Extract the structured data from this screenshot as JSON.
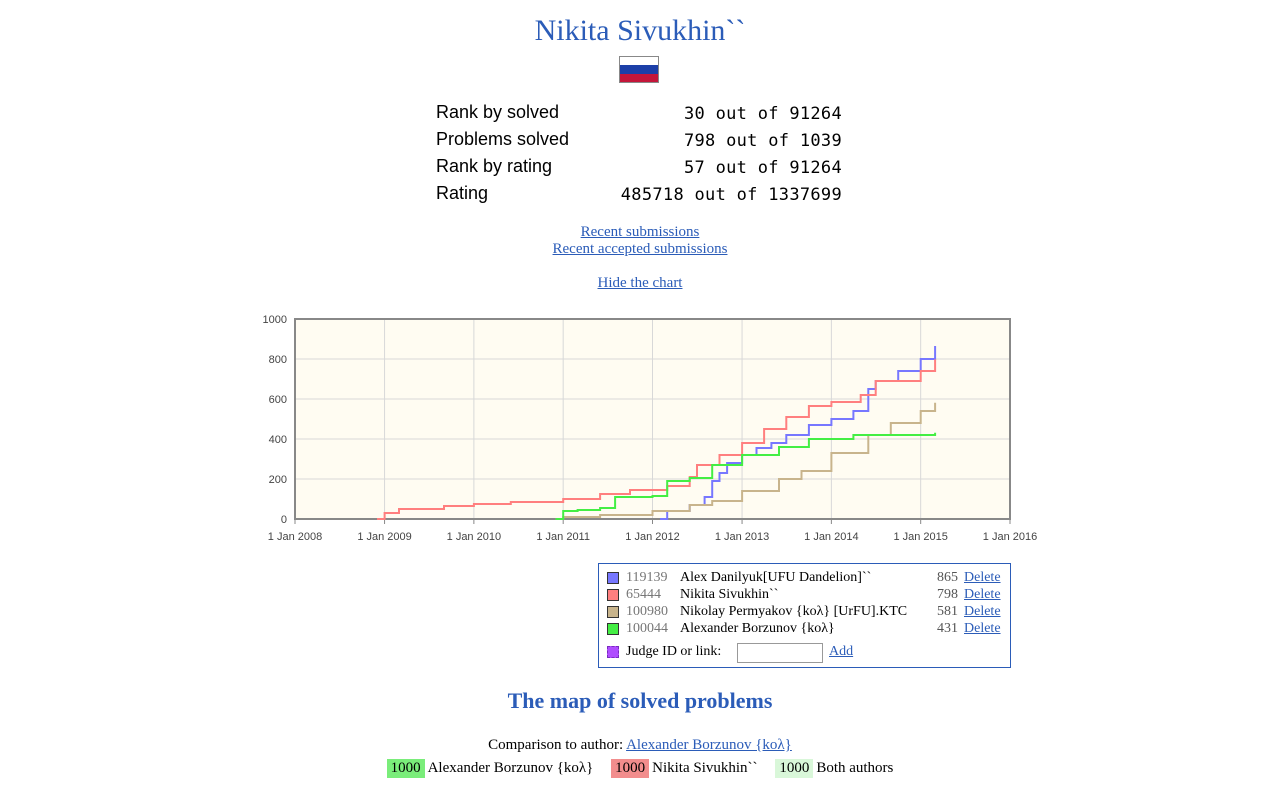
{
  "profile": {
    "name": "Nikita Sivukhin``",
    "flag_colors": [
      "#ffffff",
      "#1c3fa8",
      "#c4163a"
    ]
  },
  "stats": [
    {
      "label": "Rank by solved",
      "value": "30 out of 91264"
    },
    {
      "label": "Problems solved",
      "value": "798 out of 1039"
    },
    {
      "label": "Rank by rating",
      "value": "57 out of 91264"
    },
    {
      "label": "Rating",
      "value": "485718 out of 1337699"
    }
  ],
  "links": {
    "recent": "Recent submissions",
    "recent_accepted": "Recent accepted submissions",
    "hide_chart": "Hide the chart"
  },
  "chart_data": {
    "type": "line",
    "xlabel": "",
    "ylabel": "",
    "ylim": [
      0,
      1000
    ],
    "xlim": [
      "2008-01-01",
      "2016-01-01"
    ],
    "y_ticks": [
      0,
      200,
      400,
      600,
      800,
      1000
    ],
    "x_ticks": [
      "1 Jan 2008",
      "1 Jan 2009",
      "1 Jan 2010",
      "1 Jan 2011",
      "1 Jan 2012",
      "1 Jan 2013",
      "1 Jan 2014",
      "1 Jan 2015",
      "1 Jan 2016"
    ],
    "grid": true,
    "background": "#fffcf2",
    "series": [
      {
        "name": "Alex Danilyuk[UFU Dandelion]``",
        "color": "#7777ff",
        "points": [
          [
            "2012-02-01",
            0
          ],
          [
            "2012-03-01",
            40
          ],
          [
            "2012-06-01",
            70
          ],
          [
            "2012-08-01",
            110
          ],
          [
            "2012-09-01",
            190
          ],
          [
            "2012-10-01",
            230
          ],
          [
            "2012-11-01",
            280
          ],
          [
            "2013-01-01",
            320
          ],
          [
            "2013-03-01",
            355
          ],
          [
            "2013-05-01",
            380
          ],
          [
            "2013-07-01",
            420
          ],
          [
            "2013-10-01",
            470
          ],
          [
            "2014-01-01",
            500
          ],
          [
            "2014-04-01",
            540
          ],
          [
            "2014-06-01",
            650
          ],
          [
            "2014-07-01",
            690
          ],
          [
            "2014-10-01",
            740
          ],
          [
            "2015-01-01",
            800
          ],
          [
            "2015-03-01",
            865
          ]
        ]
      },
      {
        "name": "Nikita Sivukhin``",
        "color": "#ff7f7f",
        "points": [
          [
            "2008-12-01",
            0
          ],
          [
            "2009-01-01",
            30
          ],
          [
            "2009-03-01",
            50
          ],
          [
            "2009-09-01",
            65
          ],
          [
            "2010-01-01",
            75
          ],
          [
            "2010-06-01",
            85
          ],
          [
            "2011-01-01",
            100
          ],
          [
            "2011-06-01",
            125
          ],
          [
            "2011-10-01",
            145
          ],
          [
            "2012-03-01",
            165
          ],
          [
            "2012-06-01",
            210
          ],
          [
            "2012-07-01",
            270
          ],
          [
            "2012-10-01",
            320
          ],
          [
            "2013-01-01",
            380
          ],
          [
            "2013-04-01",
            450
          ],
          [
            "2013-07-01",
            510
          ],
          [
            "2013-10-01",
            565
          ],
          [
            "2014-01-01",
            585
          ],
          [
            "2014-05-01",
            620
          ],
          [
            "2014-07-01",
            690
          ],
          [
            "2015-01-01",
            740
          ],
          [
            "2015-03-01",
            798
          ]
        ]
      },
      {
        "name": "Nikolay Permyakov {koλ} [UrFU].KTC",
        "color": "#c8b48c",
        "points": [
          [
            "2010-12-01",
            0
          ],
          [
            "2011-01-01",
            10
          ],
          [
            "2011-06-01",
            20
          ],
          [
            "2012-01-01",
            40
          ],
          [
            "2012-06-01",
            70
          ],
          [
            "2012-09-01",
            90
          ],
          [
            "2013-01-01",
            140
          ],
          [
            "2013-06-01",
            200
          ],
          [
            "2013-09-01",
            240
          ],
          [
            "2014-01-01",
            330
          ],
          [
            "2014-06-01",
            420
          ],
          [
            "2014-09-01",
            480
          ],
          [
            "2015-01-01",
            540
          ],
          [
            "2015-03-01",
            581
          ]
        ]
      },
      {
        "name": "Alexander Borzunov {koλ}",
        "color": "#44ee44",
        "points": [
          [
            "2010-12-01",
            0
          ],
          [
            "2011-01-01",
            40
          ],
          [
            "2011-03-01",
            45
          ],
          [
            "2011-06-01",
            55
          ],
          [
            "2011-08-01",
            110
          ],
          [
            "2012-01-01",
            115
          ],
          [
            "2012-03-01",
            190
          ],
          [
            "2012-06-01",
            205
          ],
          [
            "2012-09-01",
            270
          ],
          [
            "2013-01-01",
            320
          ],
          [
            "2013-06-01",
            360
          ],
          [
            "2013-10-01",
            400
          ],
          [
            "2014-04-01",
            420
          ],
          [
            "2015-03-01",
            431
          ]
        ]
      }
    ]
  },
  "legend": {
    "rows": [
      {
        "id": "119139",
        "name": "Alex Danilyuk[UFU Dandelion]``",
        "count": "865",
        "action": "Delete",
        "color": "#7777ff"
      },
      {
        "id": "65444",
        "name": "Nikita Sivukhin``",
        "count": "798",
        "action": "Delete",
        "color": "#ff7f7f"
      },
      {
        "id": "100980",
        "name": "Nikolay Permyakov {koλ} [UrFU].KTC",
        "count": "581",
        "action": "Delete",
        "color": "#c8b48c"
      },
      {
        "id": "100044",
        "name": "Alexander Borzunov {koλ}",
        "count": "431",
        "action": "Delete",
        "color": "#44ee44"
      }
    ],
    "add_label": "Judge ID or link:",
    "add_value": "",
    "add_action": "Add",
    "add_color": "#b04dff"
  },
  "map": {
    "title": "The map of solved problems",
    "comparison_prefix": "Comparison to author:",
    "comparison_author": "Alexander Borzunov {koλ}",
    "key": [
      {
        "value": "1000",
        "label": "Alexander Borzunov {koλ}",
        "color": "#7aed7a"
      },
      {
        "value": "1000",
        "label": "Nikita Sivukhin``",
        "color": "#f28d8d"
      },
      {
        "value": "1000",
        "label": "Both authors",
        "color": "#d9f7d9"
      }
    ]
  }
}
